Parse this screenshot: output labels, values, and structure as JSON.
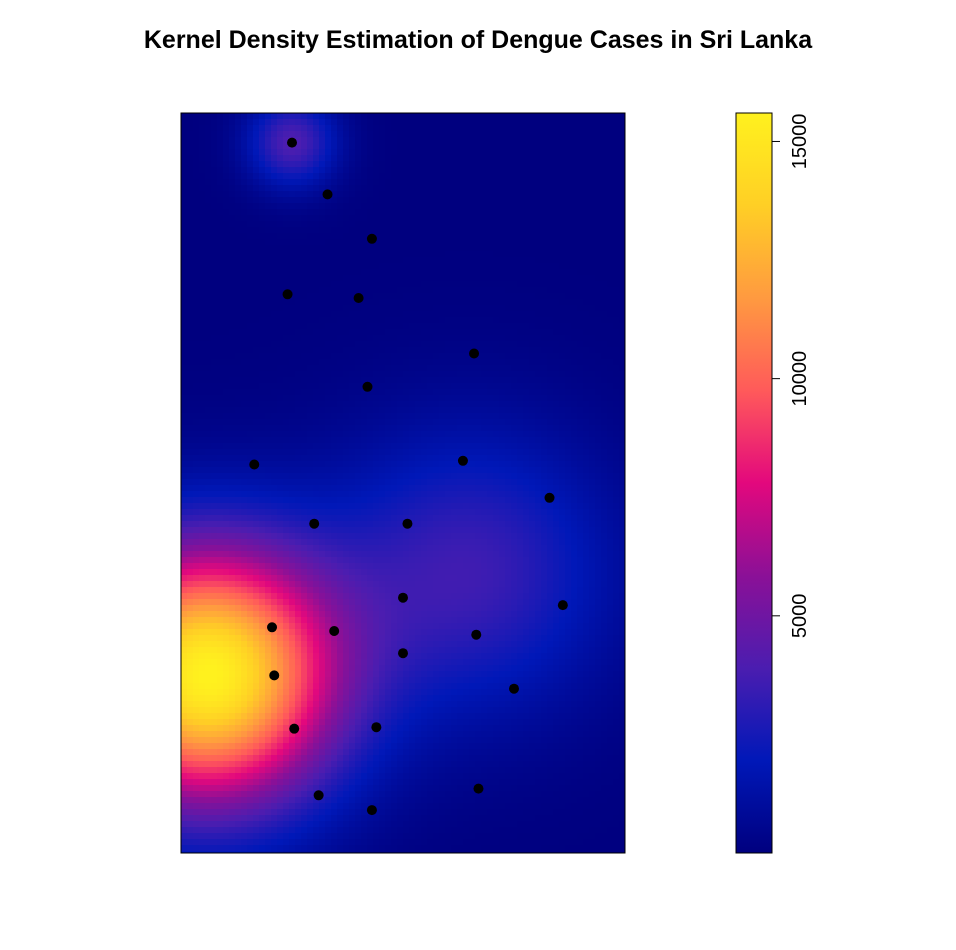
{
  "chart_data": {
    "type": "heatmap",
    "title": "Kernel Density Estimation of Dengue Cases in Sri Lanka",
    "subtitle": "",
    "xlabel": "",
    "ylabel": "",
    "axes_visible": false,
    "colorbar": {
      "range": [
        0,
        15600
      ],
      "ticks": [
        5000,
        10000,
        15000
      ],
      "tick_labels": [
        "5000",
        "10000",
        "15000"
      ],
      "placement": "right",
      "colors": [
        "#00007f",
        "#0018b8",
        "#4b1db0",
        "#8b1097",
        "#e3087d",
        "#ff5a5a",
        "#ff9a40",
        "#ffcf25",
        "#fff11e"
      ]
    },
    "density_peaks": [
      {
        "x": 0.06,
        "y": 0.24,
        "value": 15600,
        "spread": 0.2
      },
      {
        "x": 0.25,
        "y": 0.96,
        "value": 4000,
        "spread": 0.07
      },
      {
        "x": 0.65,
        "y": 0.38,
        "value": 3500,
        "spread": 0.22
      }
    ],
    "points": [
      {
        "x": 0.25,
        "y": 0.96
      },
      {
        "x": 0.33,
        "y": 0.89
      },
      {
        "x": 0.43,
        "y": 0.83
      },
      {
        "x": 0.24,
        "y": 0.755
      },
      {
        "x": 0.4,
        "y": 0.75
      },
      {
        "x": 0.66,
        "y": 0.675
      },
      {
        "x": 0.42,
        "y": 0.63
      },
      {
        "x": 0.165,
        "y": 0.525
      },
      {
        "x": 0.635,
        "y": 0.53
      },
      {
        "x": 0.83,
        "y": 0.48
      },
      {
        "x": 0.3,
        "y": 0.445
      },
      {
        "x": 0.51,
        "y": 0.445
      },
      {
        "x": 0.5,
        "y": 0.345
      },
      {
        "x": 0.86,
        "y": 0.335
      },
      {
        "x": 0.205,
        "y": 0.305
      },
      {
        "x": 0.345,
        "y": 0.3
      },
      {
        "x": 0.665,
        "y": 0.295
      },
      {
        "x": 0.5,
        "y": 0.27
      },
      {
        "x": 0.21,
        "y": 0.24
      },
      {
        "x": 0.75,
        "y": 0.222
      },
      {
        "x": 0.255,
        "y": 0.168
      },
      {
        "x": 0.44,
        "y": 0.17
      },
      {
        "x": 0.31,
        "y": 0.078
      },
      {
        "x": 0.67,
        "y": 0.087
      },
      {
        "x": 0.43,
        "y": 0.058
      }
    ]
  }
}
